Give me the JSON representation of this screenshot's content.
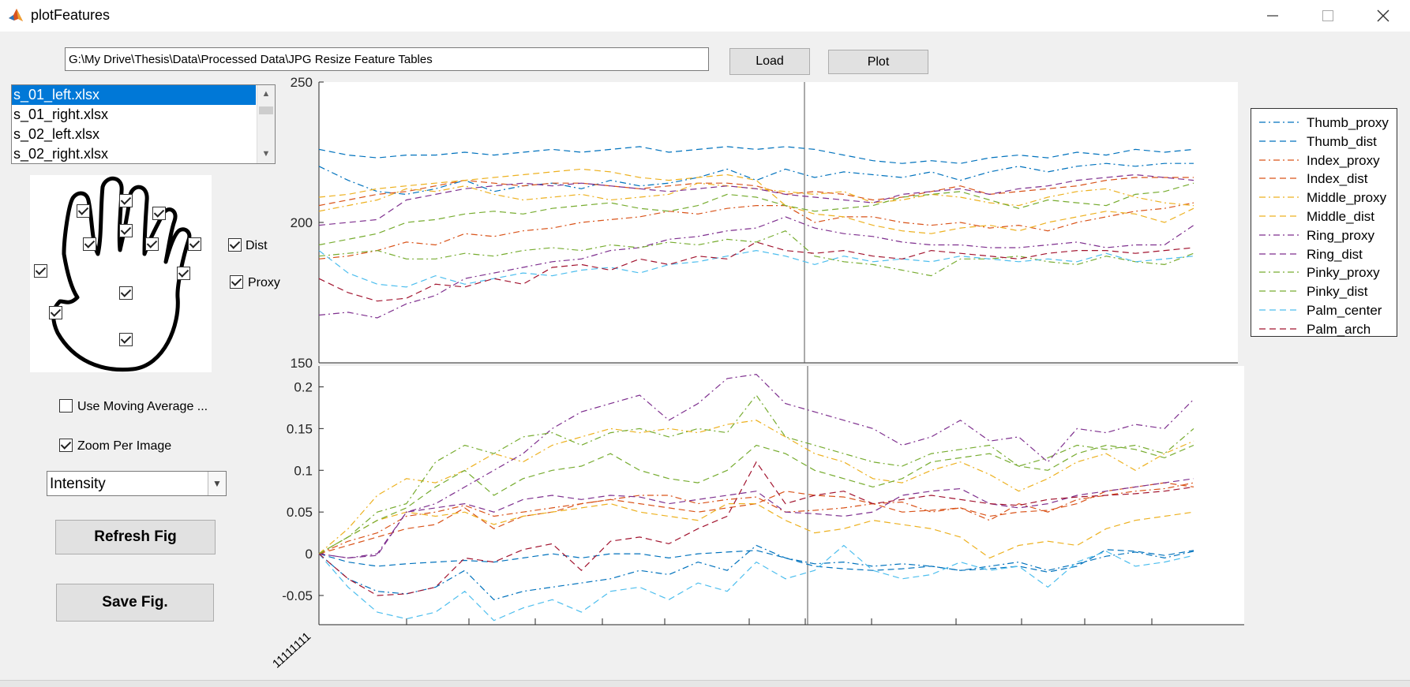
{
  "window": {
    "title": "plotFeatures",
    "icon": "matlab-icon",
    "minimize": "—",
    "maximize": "☐",
    "close": "✕"
  },
  "toolbar": {
    "path_value": "G:\\My Drive\\Thesis\\Data\\Processed Data\\JPG Resize Feature Tables",
    "load_label": "Load",
    "plot_label": "Plot"
  },
  "file_list": {
    "items": [
      "s_01_left.xlsx",
      "s_01_right.xlsx",
      "s_02_left.xlsx",
      "s_02_right.xlsx"
    ],
    "selected_index": 0
  },
  "hand_panel": {
    "checkboxes_checked": true
  },
  "options": {
    "dist_label": "Dist",
    "dist_checked": true,
    "proxy_label": "Proxy",
    "proxy_checked": true,
    "moving_average_label": "Use Moving Average ...",
    "moving_average_checked": false,
    "zoom_label": "Zoom Per Image",
    "zoom_checked": true,
    "feature_select": "Intensity",
    "refresh_label": "Refresh Fig",
    "save_label": "Save Fig."
  },
  "x_tick_label": "11111111",
  "chart_data": [
    {
      "type": "line",
      "title": "",
      "xlabel": "",
      "ylabel": "",
      "ylim": [
        150,
        250
      ],
      "yticks": [
        "150",
        "200",
        "250"
      ],
      "vline_index": 16,
      "series": [
        {
          "name": "Thumb_proxy",
          "color": "#0072bd",
          "dash": "dashdot",
          "values": [
            220,
            215,
            211,
            210,
            212,
            215,
            211,
            213,
            214,
            212,
            215,
            213,
            214,
            216,
            219,
            215,
            219,
            216,
            218,
            217,
            216,
            218,
            215,
            218,
            220,
            218,
            220,
            221,
            220,
            221,
            221
          ]
        },
        {
          "name": "Thumb_dist",
          "color": "#0072bd",
          "dash": "dash",
          "values": [
            226,
            224,
            223,
            224,
            224,
            225,
            224,
            225,
            226,
            225,
            226,
            227,
            225,
            226,
            227,
            226,
            227,
            226,
            224,
            222,
            221,
            222,
            221,
            223,
            224,
            223,
            225,
            224,
            226,
            225,
            226
          ]
        },
        {
          "name": "Index_proxy",
          "color": "#d95319",
          "dash": "dashdot",
          "values": [
            187,
            188,
            190,
            193,
            192,
            196,
            195,
            197,
            198,
            200,
            201,
            202,
            204,
            203,
            205,
            206,
            206,
            200,
            202,
            202,
            200,
            199,
            200,
            198,
            199,
            197,
            200,
            202,
            204,
            205,
            207
          ]
        },
        {
          "name": "Index_dist",
          "color": "#d95319",
          "dash": "dash",
          "values": [
            206,
            208,
            210,
            211,
            213,
            215,
            214,
            213,
            214,
            214,
            213,
            212,
            213,
            214,
            214,
            213,
            210,
            211,
            210,
            208,
            209,
            211,
            213,
            210,
            211,
            212,
            213,
            215,
            216,
            216,
            216
          ]
        },
        {
          "name": "Middle_proxy",
          "color": "#edb120",
          "dash": "dashdot",
          "values": [
            204,
            206,
            208,
            212,
            211,
            213,
            210,
            208,
            209,
            210,
            208,
            209,
            210,
            214,
            213,
            212,
            211,
            210,
            211,
            207,
            208,
            210,
            209,
            207,
            206,
            209,
            211,
            212,
            209,
            207,
            206
          ]
        },
        {
          "name": "Middle_dist",
          "color": "#edb120",
          "dash": "dash",
          "values": [
            209,
            210,
            212,
            213,
            214,
            215,
            216,
            217,
            218,
            219,
            218,
            216,
            215,
            216,
            217,
            215,
            206,
            203,
            202,
            199,
            197,
            196,
            198,
            199,
            197,
            200,
            202,
            204,
            203,
            200,
            205
          ]
        },
        {
          "name": "Ring_proxy",
          "color": "#7e2f8e",
          "dash": "dashdot",
          "values": [
            167,
            168,
            166,
            171,
            174,
            180,
            182,
            184,
            186,
            187,
            190,
            191,
            194,
            195,
            197,
            198,
            202,
            198,
            196,
            195,
            193,
            192,
            192,
            191,
            191,
            192,
            193,
            191,
            192,
            192,
            199
          ]
        },
        {
          "name": "Ring_dist",
          "color": "#7e2f8e",
          "dash": "dash",
          "values": [
            199,
            200,
            201,
            208,
            210,
            212,
            213,
            214,
            213,
            214,
            213,
            212,
            211,
            212,
            213,
            212,
            210,
            209,
            208,
            207,
            210,
            211,
            212,
            210,
            212,
            213,
            215,
            216,
            217,
            216,
            215
          ]
        },
        {
          "name": "Pinky_proxy",
          "color": "#77ac30",
          "dash": "dashdot",
          "values": [
            188,
            189,
            190,
            187,
            187,
            189,
            188,
            190,
            191,
            190,
            192,
            191,
            193,
            192,
            194,
            193,
            197,
            188,
            186,
            185,
            183,
            181,
            187,
            187,
            188,
            186,
            185,
            188,
            186,
            185,
            189
          ]
        },
        {
          "name": "Pinky_dist",
          "color": "#77ac30",
          "dash": "dash",
          "values": [
            192,
            194,
            196,
            200,
            201,
            203,
            204,
            203,
            205,
            206,
            207,
            205,
            204,
            206,
            210,
            209,
            206,
            204,
            205,
            206,
            209,
            210,
            211,
            208,
            205,
            208,
            207,
            206,
            210,
            211,
            214
          ]
        },
        {
          "name": "Palm_center",
          "color": "#4dbeee",
          "dash": "dash",
          "values": [
            190,
            182,
            178,
            177,
            181,
            178,
            180,
            182,
            181,
            183,
            184,
            182,
            185,
            186,
            188,
            190,
            188,
            185,
            188,
            186,
            187,
            186,
            188,
            187,
            186,
            187,
            186,
            189,
            186,
            187,
            188
          ]
        },
        {
          "name": "Palm_arch",
          "color": "#a2142f",
          "dash": "dash",
          "values": [
            180,
            175,
            172,
            173,
            178,
            177,
            180,
            178,
            184,
            185,
            183,
            187,
            185,
            188,
            187,
            193,
            190,
            189,
            190,
            188,
            187,
            190,
            189,
            188,
            187,
            189,
            190,
            190,
            189,
            190,
            191
          ]
        }
      ]
    },
    {
      "type": "line",
      "title": "",
      "xlabel": "",
      "ylabel": "",
      "ylim": [
        -0.085,
        0.225
      ],
      "yticks": [
        "-0.05",
        "0",
        "0.05",
        "0.1",
        "0.15",
        "0.2"
      ],
      "vline_index": 16,
      "series": [
        {
          "name": "Thumb_proxy",
          "color": "#0072bd",
          "dash": "dashdot",
          "values": [
            0,
            -0.03,
            -0.045,
            -0.048,
            -0.04,
            -0.02,
            -0.055,
            -0.045,
            -0.04,
            -0.035,
            -0.03,
            -0.02,
            -0.025,
            -0.01,
            -0.02,
            0.01,
            -0.005,
            -0.012,
            -0.01,
            -0.015,
            -0.012,
            -0.015,
            -0.02,
            -0.015,
            -0.01,
            -0.02,
            -0.012,
            -0.003,
            0.002,
            -0.005,
            0.003
          ]
        },
        {
          "name": "Thumb_dist",
          "color": "#0072bd",
          "dash": "dash",
          "values": [
            0,
            -0.01,
            -0.015,
            -0.012,
            -0.01,
            -0.008,
            -0.01,
            -0.005,
            0,
            -0.005,
            0,
            0,
            -0.005,
            0,
            0.002,
            0.004,
            -0.005,
            -0.015,
            -0.018,
            -0.02,
            -0.018,
            -0.015,
            -0.02,
            -0.018,
            -0.015,
            -0.022,
            -0.015,
            0.005,
            0.003,
            -0.002,
            0.004
          ]
        },
        {
          "name": "Index_proxy",
          "color": "#d95319",
          "dash": "dashdot",
          "values": [
            0,
            0.015,
            0.025,
            0.045,
            0.05,
            0.058,
            0.045,
            0.05,
            0.055,
            0.06,
            0.065,
            0.07,
            0.07,
            0.06,
            0.065,
            0.068,
            0.05,
            0.052,
            0.055,
            0.06,
            0.062,
            0.05,
            0.055,
            0.04,
            0.06,
            0.05,
            0.065,
            0.07,
            0.075,
            0.078,
            0.085
          ]
        },
        {
          "name": "Index_dist",
          "color": "#d95319",
          "dash": "dash",
          "values": [
            0,
            0.01,
            0.02,
            0.03,
            0.035,
            0.055,
            0.03,
            0.045,
            0.05,
            0.06,
            0.065,
            0.06,
            0.055,
            0.05,
            0.055,
            0.06,
            0.075,
            0.07,
            0.068,
            0.06,
            0.05,
            0.052,
            0.055,
            0.045,
            0.05,
            0.052,
            0.06,
            0.075,
            0.08,
            0.085,
            0.08
          ]
        },
        {
          "name": "Middle_proxy",
          "color": "#edb120",
          "dash": "dashdot",
          "values": [
            0,
            0.03,
            0.07,
            0.09,
            0.085,
            0.1,
            0.12,
            0.11,
            0.13,
            0.14,
            0.15,
            0.145,
            0.15,
            0.145,
            0.155,
            0.16,
            0.14,
            0.12,
            0.11,
            0.09,
            0.085,
            0.1,
            0.11,
            0.095,
            0.075,
            0.09,
            0.11,
            0.12,
            0.1,
            0.12,
            0.135
          ]
        },
        {
          "name": "Middle_dist",
          "color": "#edb120",
          "dash": "dash",
          "values": [
            0,
            0.02,
            0.04,
            0.05,
            0.045,
            0.05,
            0.035,
            0.045,
            0.05,
            0.055,
            0.06,
            0.05,
            0.045,
            0.04,
            0.06,
            0.06,
            0.04,
            0.025,
            0.03,
            0.04,
            0.035,
            0.03,
            0.02,
            -0.005,
            0.01,
            0.015,
            0.01,
            0.03,
            0.04,
            0.045,
            0.05
          ]
        },
        {
          "name": "Ring_proxy",
          "color": "#7e2f8e",
          "dash": "dashdot",
          "values": [
            0,
            -0.005,
            0,
            0.05,
            0.06,
            0.08,
            0.1,
            0.12,
            0.15,
            0.17,
            0.18,
            0.19,
            0.16,
            0.18,
            0.21,
            0.215,
            0.18,
            0.17,
            0.16,
            0.15,
            0.13,
            0.14,
            0.16,
            0.135,
            0.14,
            0.11,
            0.15,
            0.145,
            0.155,
            0.15,
            0.185
          ]
        },
        {
          "name": "Ring_dist",
          "color": "#7e2f8e",
          "dash": "dash",
          "values": [
            0,
            -0.005,
            -0.002,
            0.05,
            0.055,
            0.06,
            0.05,
            0.065,
            0.07,
            0.065,
            0.07,
            0.068,
            0.06,
            0.065,
            0.07,
            0.075,
            0.05,
            0.048,
            0.045,
            0.05,
            0.07,
            0.075,
            0.078,
            0.06,
            0.055,
            0.06,
            0.07,
            0.075,
            0.08,
            0.085,
            0.09
          ]
        },
        {
          "name": "Pinky_proxy",
          "color": "#77ac30",
          "dash": "dashdot",
          "values": [
            0,
            0.02,
            0.05,
            0.06,
            0.11,
            0.13,
            0.12,
            0.14,
            0.145,
            0.13,
            0.145,
            0.15,
            0.14,
            0.15,
            0.145,
            0.19,
            0.14,
            0.13,
            0.12,
            0.11,
            0.105,
            0.12,
            0.125,
            0.13,
            0.105,
            0.115,
            0.13,
            0.125,
            0.13,
            0.12,
            0.15
          ]
        },
        {
          "name": "Pinky_dist",
          "color": "#77ac30",
          "dash": "dash",
          "values": [
            0,
            0.02,
            0.04,
            0.055,
            0.08,
            0.1,
            0.07,
            0.09,
            0.1,
            0.105,
            0.12,
            0.1,
            0.09,
            0.085,
            0.1,
            0.13,
            0.12,
            0.1,
            0.09,
            0.08,
            0.09,
            0.11,
            0.115,
            0.12,
            0.105,
            0.1,
            0.12,
            0.13,
            0.125,
            0.115,
            0.13
          ]
        },
        {
          "name": "Palm_center",
          "color": "#4dbeee",
          "dash": "dash",
          "values": [
            0,
            -0.04,
            -0.07,
            -0.078,
            -0.07,
            -0.045,
            -0.08,
            -0.065,
            -0.055,
            -0.07,
            -0.045,
            -0.04,
            -0.055,
            -0.035,
            -0.045,
            -0.01,
            -0.03,
            -0.02,
            0.01,
            -0.02,
            -0.03,
            -0.025,
            -0.01,
            -0.02,
            -0.015,
            -0.04,
            -0.01,
            0.003,
            -0.015,
            -0.01,
            -0.002
          ]
        },
        {
          "name": "Palm_arch",
          "color": "#a2142f",
          "dash": "dash",
          "values": [
            0,
            -0.03,
            -0.05,
            -0.048,
            -0.04,
            -0.005,
            -0.01,
            0.005,
            0.012,
            -0.02,
            0.015,
            0.02,
            0.012,
            0.03,
            0.045,
            0.11,
            0.06,
            0.07,
            0.075,
            0.06,
            0.065,
            0.07,
            0.065,
            0.06,
            0.058,
            0.065,
            0.068,
            0.07,
            0.072,
            0.075,
            0.08
          ]
        }
      ]
    }
  ]
}
